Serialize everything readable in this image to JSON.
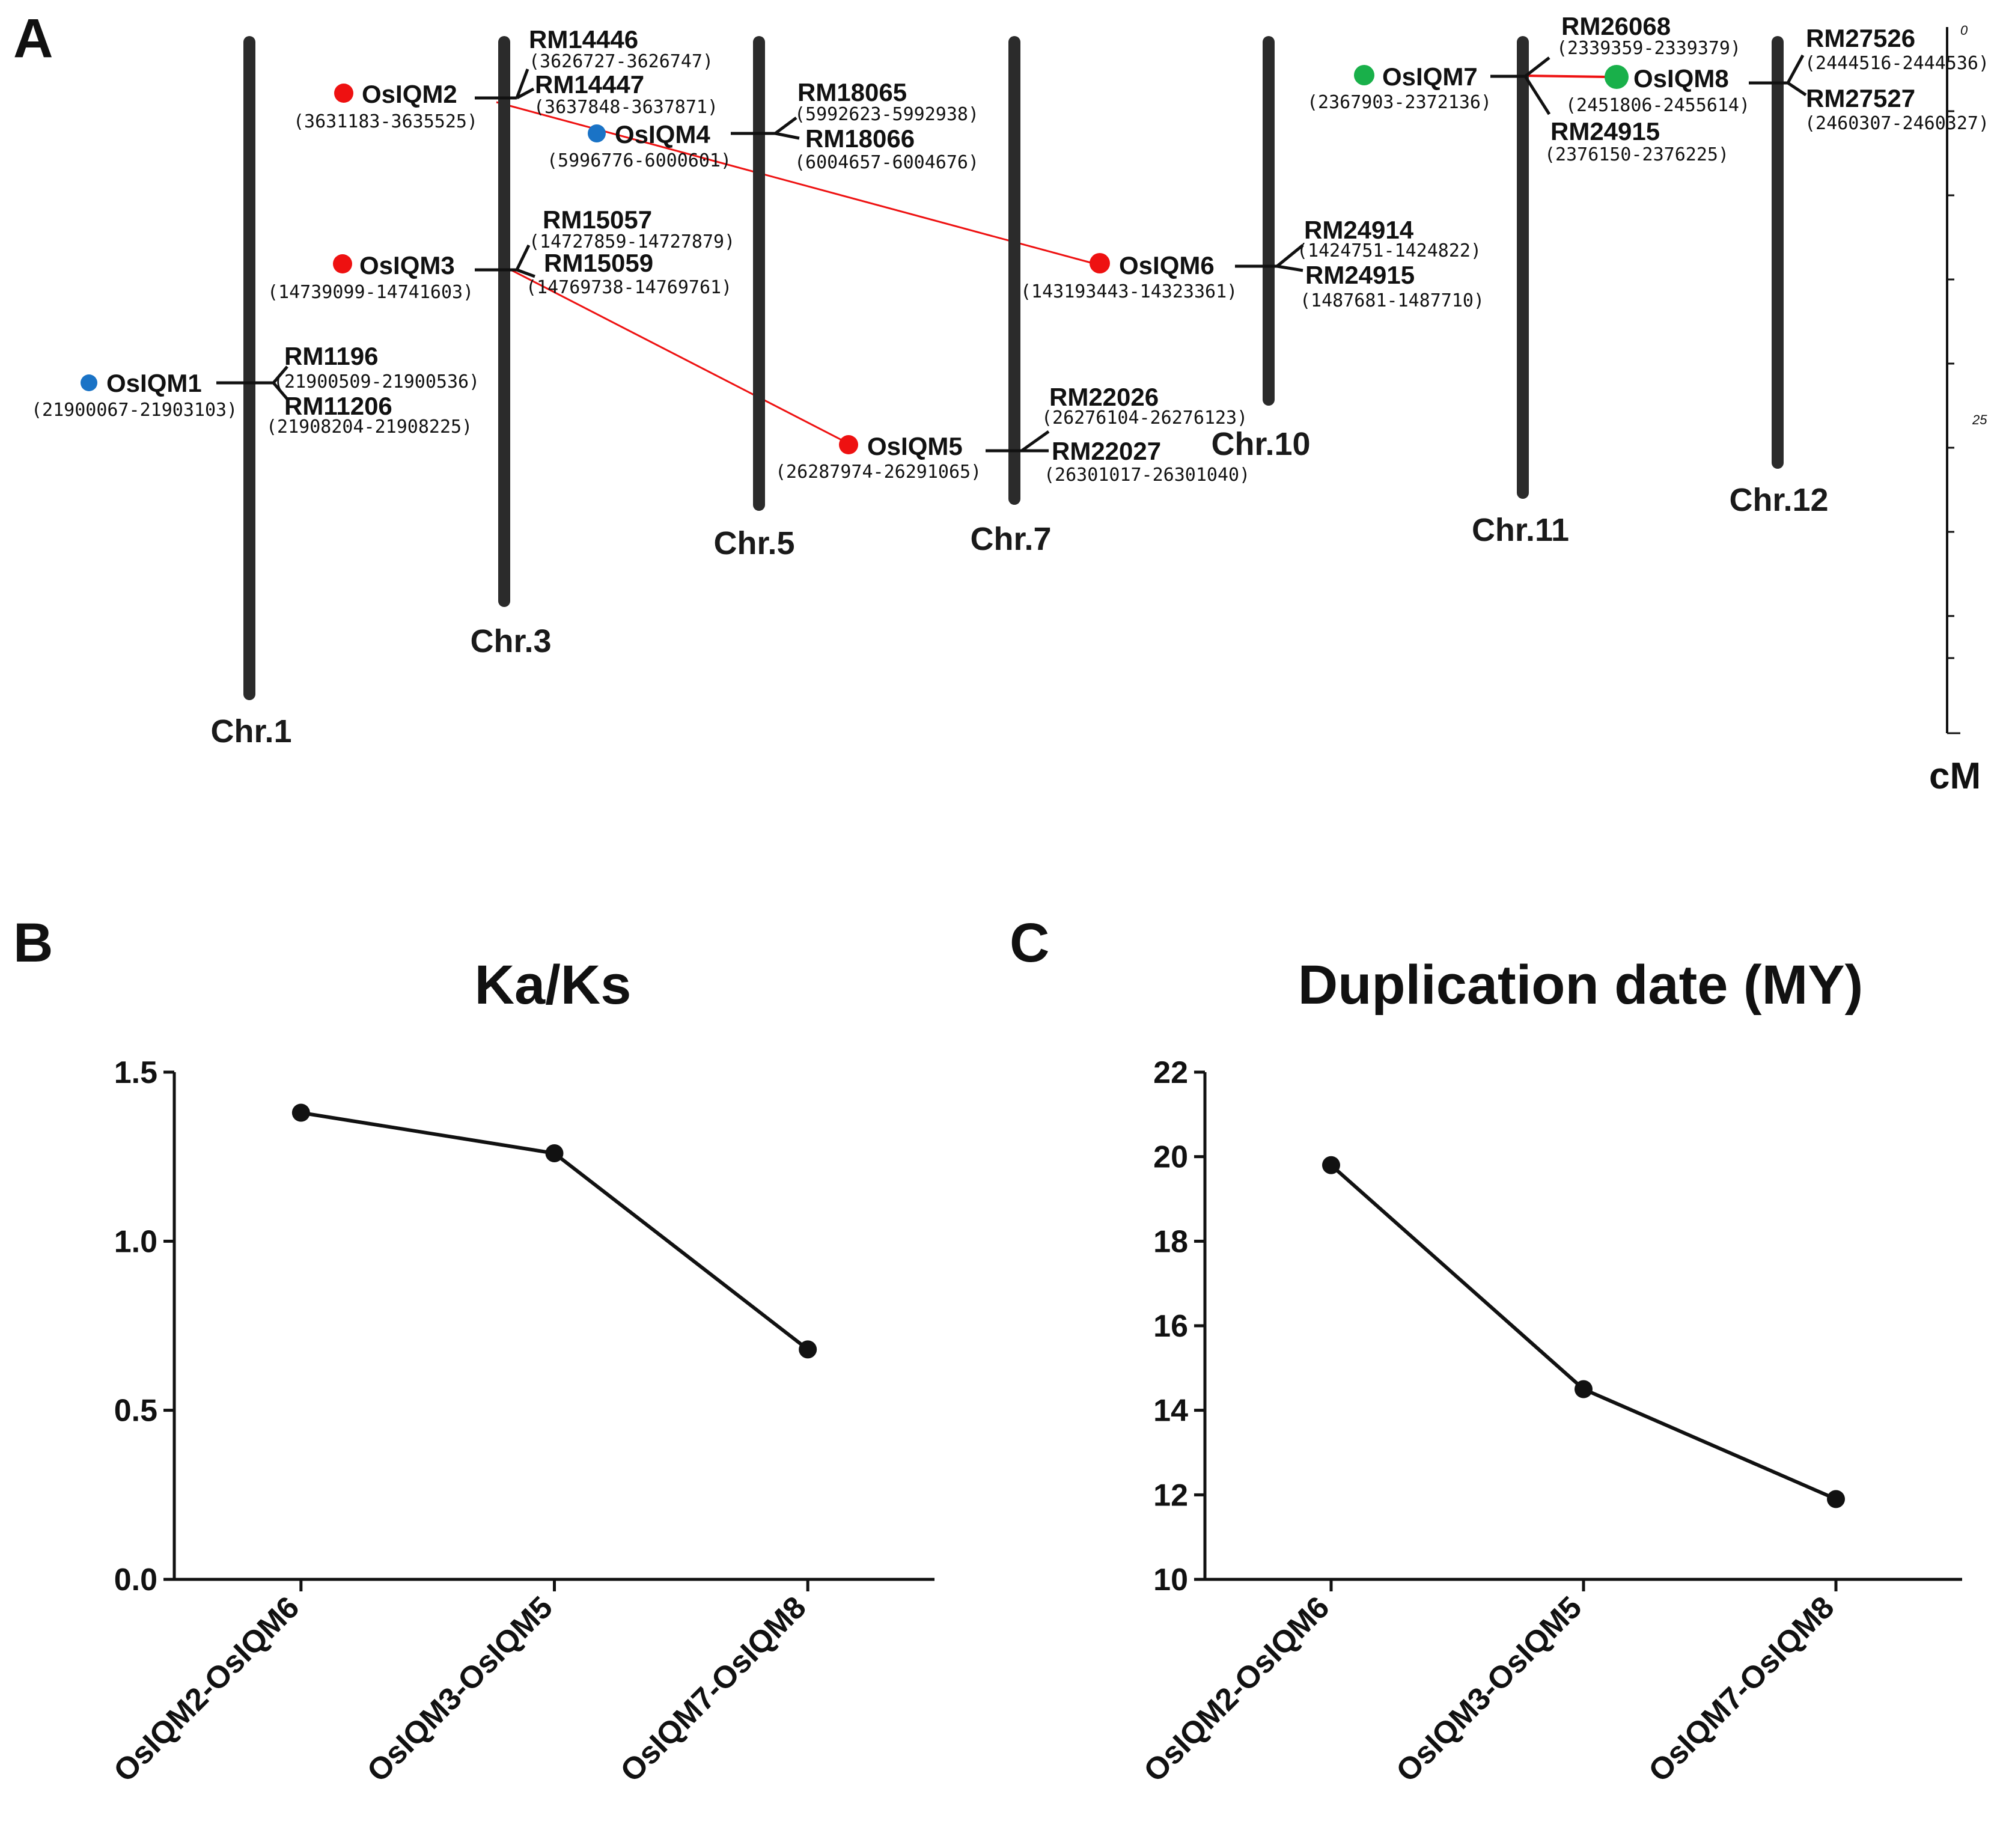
{
  "panels": {
    "a": "A",
    "b": "B",
    "c": "C"
  },
  "map": {
    "chromosomes": [
      {
        "id": "chr1",
        "label": "Chr.1"
      },
      {
        "id": "chr3",
        "label": "Chr.3"
      },
      {
        "id": "chr5",
        "label": "Chr.5"
      },
      {
        "id": "chr7",
        "label": "Chr.7"
      },
      {
        "id": "chr10",
        "label": "Chr.10"
      },
      {
        "id": "chr11",
        "label": "Chr.11"
      },
      {
        "id": "chr12",
        "label": "Chr.12"
      }
    ],
    "genes": [
      {
        "id": "q1",
        "name": "OsIQM1",
        "coords": "(21900067-21903103)",
        "chr": "chr1",
        "dot_color": "#1a73c6"
      },
      {
        "id": "q2",
        "name": "OsIQM2",
        "coords": "(3631183-3635525)",
        "chr": "chr3",
        "dot_color": "#ee1111"
      },
      {
        "id": "q3",
        "name": "OsIQM3",
        "coords": "(14739099-14741603)",
        "chr": "chr3",
        "dot_color": "#ee1111"
      },
      {
        "id": "q4",
        "name": "OsIQM4",
        "coords": "(5996776-6000601)",
        "chr": "chr5",
        "dot_color": "#1a73c6"
      },
      {
        "id": "q5",
        "name": "OsIQM5",
        "coords": "(26287974-26291065)",
        "chr": "chr7",
        "dot_color": "#ee1111"
      },
      {
        "id": "q6",
        "name": "OsIQM6",
        "coords": "(143193443-14323361)",
        "chr": "chr10",
        "dot_color": "#ee1111"
      },
      {
        "id": "q7",
        "name": "OsIQM7",
        "coords": "(2367903-2372136)",
        "chr": "chr11",
        "dot_color": "#19b04a"
      },
      {
        "id": "q8",
        "name": "OsIQM8",
        "coords": "(2451806-2455614)",
        "chr": "chr12",
        "dot_color": "#19b04a"
      }
    ],
    "markers": [
      {
        "id": "m1",
        "name": "RM1196",
        "coords": "(21900509-21900536)"
      },
      {
        "id": "m2",
        "name": "RM11206",
        "coords": "(21908204-21908225)"
      },
      {
        "id": "m3",
        "name": "RM14446",
        "coords": "(3626727-3626747)"
      },
      {
        "id": "m4",
        "name": "RM14447",
        "coords": "(3637848-3637871)"
      },
      {
        "id": "m5",
        "name": "RM15057",
        "coords": "(14727859-14727879)"
      },
      {
        "id": "m6",
        "name": "RM15059",
        "coords": "(14769738-14769761)"
      },
      {
        "id": "m7",
        "name": "RM18065",
        "coords": "(5992623-5992938)"
      },
      {
        "id": "m8",
        "name": "RM18066",
        "coords": "(6004657-6004676)"
      },
      {
        "id": "m9",
        "name": "RM22026",
        "coords": "(26276104-26276123)"
      },
      {
        "id": "m10",
        "name": "RM22027",
        "coords": "(26301017-26301040)"
      },
      {
        "id": "m11",
        "name": "RM24914",
        "coords": "(1424751-1424822)"
      },
      {
        "id": "m12",
        "name": "RM24915",
        "coords": "(1487681-1487710)"
      },
      {
        "id": "m13",
        "name": "RM26068",
        "coords": "(2339359-2339379)"
      },
      {
        "id": "m14",
        "name": "RM24915",
        "coords": "(2376150-2376225)"
      },
      {
        "id": "m15",
        "name": "RM27526",
        "coords": "(2444516-2444536)"
      },
      {
        "id": "m16",
        "name": "RM27527",
        "coords": "(2460307-2460327)"
      }
    ],
    "duplication_links": [
      {
        "from": "OsIQM2",
        "to": "OsIQM6",
        "color": "#ee1111"
      },
      {
        "from": "OsIQM3",
        "to": "OsIQM5",
        "color": "#ee1111"
      },
      {
        "from": "OsIQM7",
        "to": "OsIQM8",
        "color": "#ee1111"
      }
    ],
    "scale": {
      "ticks": [
        "0",
        "25"
      ],
      "unit": "cM"
    }
  },
  "chart_data": [
    {
      "type": "line",
      "title": "Ka/Ks",
      "categories": [
        "OsIQM2-OsIQM6",
        "OsIQM3-OsIQM5",
        "OsIQM7-OsIQM8"
      ],
      "values": [
        1.38,
        1.26,
        0.68
      ],
      "ylim": [
        0,
        1.5
      ],
      "yticks": [
        0.0,
        0.5,
        1.0,
        1.5
      ],
      "ytick_labels": [
        "0.0",
        "0.5",
        "1.0",
        "1.5"
      ],
      "xlabel": "",
      "ylabel": "",
      "color": "#111111"
    },
    {
      "type": "line",
      "title": "Duplication date (MY)",
      "categories": [
        "OsIQM2-OsIQM6",
        "OsIQM3-OsIQM5",
        "OsIQM7-OsIQM8"
      ],
      "values": [
        19.8,
        14.5,
        11.9
      ],
      "ylim": [
        10,
        22
      ],
      "yticks": [
        10,
        12,
        14,
        16,
        18,
        20,
        22
      ],
      "ytick_labels": [
        "10",
        "12",
        "14",
        "16",
        "18",
        "20",
        "22"
      ],
      "xlabel": "",
      "ylabel": "",
      "color": "#111111"
    }
  ]
}
